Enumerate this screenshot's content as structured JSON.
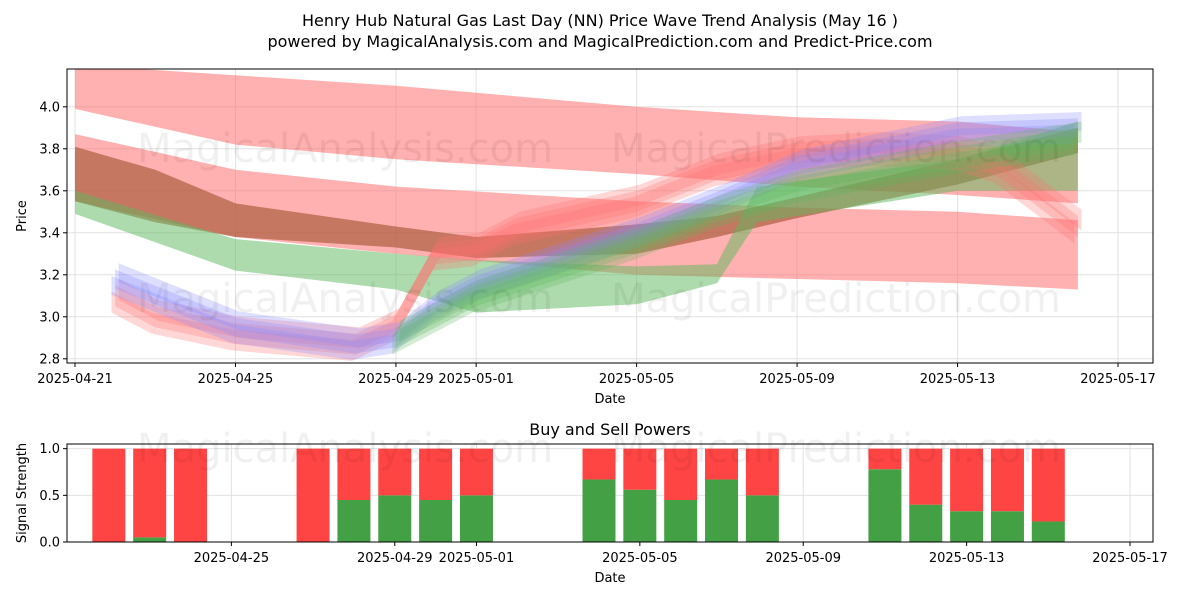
{
  "titles": {
    "line1": "Henry Hub Natural Gas Last Day  (NN) Price Wave Trend Analysis (May 16 )",
    "line2": "powered by MagicalAnalysis.com and MagicalPrediction.com and Predict-Price.com"
  },
  "watermarks": [
    "MagicalAnalysis.com",
    "MagicalPrediction.com"
  ],
  "colors": {
    "sell": "#ff4444",
    "buy": "#44a044",
    "red_band": "#ff7070",
    "green_band": "#5cb85c",
    "blue_band": "#8888ff"
  },
  "chart_data": [
    {
      "type": "area",
      "title": "",
      "xlabel": "Date",
      "ylabel": "Price",
      "x_range": [
        "2025-04-21",
        "2025-05-17"
      ],
      "ylim": [
        2.78,
        4.18
      ],
      "x_ticks": [
        "2025-04-21",
        "2025-04-25",
        "2025-04-29",
        "2025-05-01",
        "2025-05-05",
        "2025-05-09",
        "2025-05-13",
        "2025-05-17"
      ],
      "y_ticks": [
        2.8,
        3.0,
        3.2,
        3.4,
        3.6,
        3.8,
        4.0
      ],
      "grid": true,
      "wide_bands": [
        {
          "color": "red",
          "x": [
            "2025-04-21",
            "2025-04-25",
            "2025-04-29",
            "2025-05-05",
            "2025-05-09",
            "2025-05-13",
            "2025-05-16"
          ],
          "upper": [
            4.2,
            4.15,
            4.1,
            4.0,
            3.95,
            3.93,
            3.88
          ],
          "lower": [
            3.99,
            3.82,
            3.75,
            3.68,
            3.62,
            3.58,
            3.54
          ]
        },
        {
          "color": "red",
          "x": [
            "2025-04-21",
            "2025-04-25",
            "2025-04-29",
            "2025-05-05",
            "2025-05-09",
            "2025-05-13",
            "2025-05-16"
          ],
          "upper": [
            3.87,
            3.7,
            3.62,
            3.55,
            3.52,
            3.5,
            3.46
          ],
          "lower": [
            3.55,
            3.38,
            3.3,
            3.2,
            3.18,
            3.16,
            3.13
          ]
        },
        {
          "color": "brown",
          "x": [
            "2025-04-21",
            "2025-04-23",
            "2025-04-25",
            "2025-04-29",
            "2025-05-01",
            "2025-05-05",
            "2025-05-07",
            "2025-05-09",
            "2025-05-13",
            "2025-05-16"
          ],
          "upper": [
            3.81,
            3.7,
            3.54,
            3.43,
            3.38,
            3.44,
            3.48,
            3.57,
            3.75,
            3.9
          ],
          "lower": [
            3.55,
            3.45,
            3.38,
            3.33,
            3.28,
            3.3,
            3.38,
            3.47,
            3.63,
            3.78
          ]
        },
        {
          "color": "green",
          "x": [
            "2025-04-21",
            "2025-04-25",
            "2025-04-29",
            "2025-05-01",
            "2025-05-05",
            "2025-05-07",
            "2025-05-08",
            "2025-05-13",
            "2025-05-16"
          ],
          "upper": [
            3.6,
            3.37,
            3.3,
            3.27,
            3.24,
            3.25,
            3.62,
            3.75,
            3.93
          ],
          "lower": [
            3.49,
            3.22,
            3.13,
            3.02,
            3.06,
            3.16,
            3.45,
            3.6,
            3.6
          ]
        }
      ],
      "wave_bundles": [
        {
          "color": "red",
          "x": [
            "2025-04-22",
            "2025-04-23",
            "2025-04-25",
            "2025-04-28",
            "2025-04-29",
            "2025-04-30",
            "2025-05-01",
            "2025-05-02",
            "2025-05-05",
            "2025-05-07",
            "2025-05-09",
            "2025-05-11",
            "2025-05-13",
            "2025-05-14",
            "2025-05-16"
          ],
          "center": [
            3.1,
            3.0,
            2.92,
            2.87,
            2.96,
            3.3,
            3.32,
            3.42,
            3.55,
            3.7,
            3.78,
            3.8,
            3.78,
            3.72,
            3.43
          ],
          "half_width": 0.05
        },
        {
          "color": "blue",
          "x": [
            "2025-04-22",
            "2025-04-25",
            "2025-04-28",
            "2025-04-29",
            "2025-04-30",
            "2025-05-01",
            "2025-05-05",
            "2025-05-07",
            "2025-05-09",
            "2025-05-11",
            "2025-05-13",
            "2025-05-16"
          ],
          "center": [
            3.18,
            2.95,
            2.87,
            2.9,
            3.05,
            3.15,
            3.4,
            3.55,
            3.72,
            3.8,
            3.88,
            3.9
          ],
          "half_width": 0.045
        },
        {
          "color": "green",
          "x": [
            "2025-04-29",
            "2025-05-01",
            "2025-05-05",
            "2025-05-07",
            "2025-05-09",
            "2025-05-13",
            "2025-05-16"
          ],
          "center": [
            2.9,
            3.1,
            3.35,
            3.5,
            3.62,
            3.76,
            3.85
          ],
          "half_width": 0.05
        }
      ]
    },
    {
      "type": "bar",
      "title": "Buy and Sell Powers",
      "xlabel": "Date",
      "ylabel": "Signal Strength",
      "ylim": [
        0,
        1.05
      ],
      "y_ticks": [
        "0.0",
        "0.5",
        "1.0"
      ],
      "x_ticks": [
        "2025-04-25",
        "2025-04-29",
        "2025-05-01",
        "2025-05-05",
        "2025-05-09",
        "2025-05-13",
        "2025-05-17"
      ],
      "grid": true,
      "categories": [
        "2025-04-22",
        "2025-04-23",
        "2025-04-24",
        "2025-04-27",
        "2025-04-28",
        "2025-04-29",
        "2025-04-30",
        "2025-05-01",
        "2025-05-04",
        "2025-05-05",
        "2025-05-06",
        "2025-05-07",
        "2025-05-08",
        "2025-05-11",
        "2025-05-12",
        "2025-05-13",
        "2025-05-14",
        "2025-05-15"
      ],
      "series": [
        {
          "name": "buy",
          "values": [
            0.0,
            0.05,
            0.0,
            0.0,
            0.45,
            0.5,
            0.45,
            0.5,
            0.67,
            0.56,
            0.45,
            0.67,
            0.5,
            0.78,
            0.4,
            0.33,
            0.33,
            0.22
          ]
        },
        {
          "name": "sell",
          "values": [
            1.0,
            0.95,
            1.0,
            1.0,
            0.55,
            0.5,
            0.55,
            0.5,
            0.33,
            0.44,
            0.55,
            0.33,
            0.5,
            0.22,
            0.6,
            0.67,
            0.67,
            0.78
          ]
        }
      ]
    }
  ]
}
